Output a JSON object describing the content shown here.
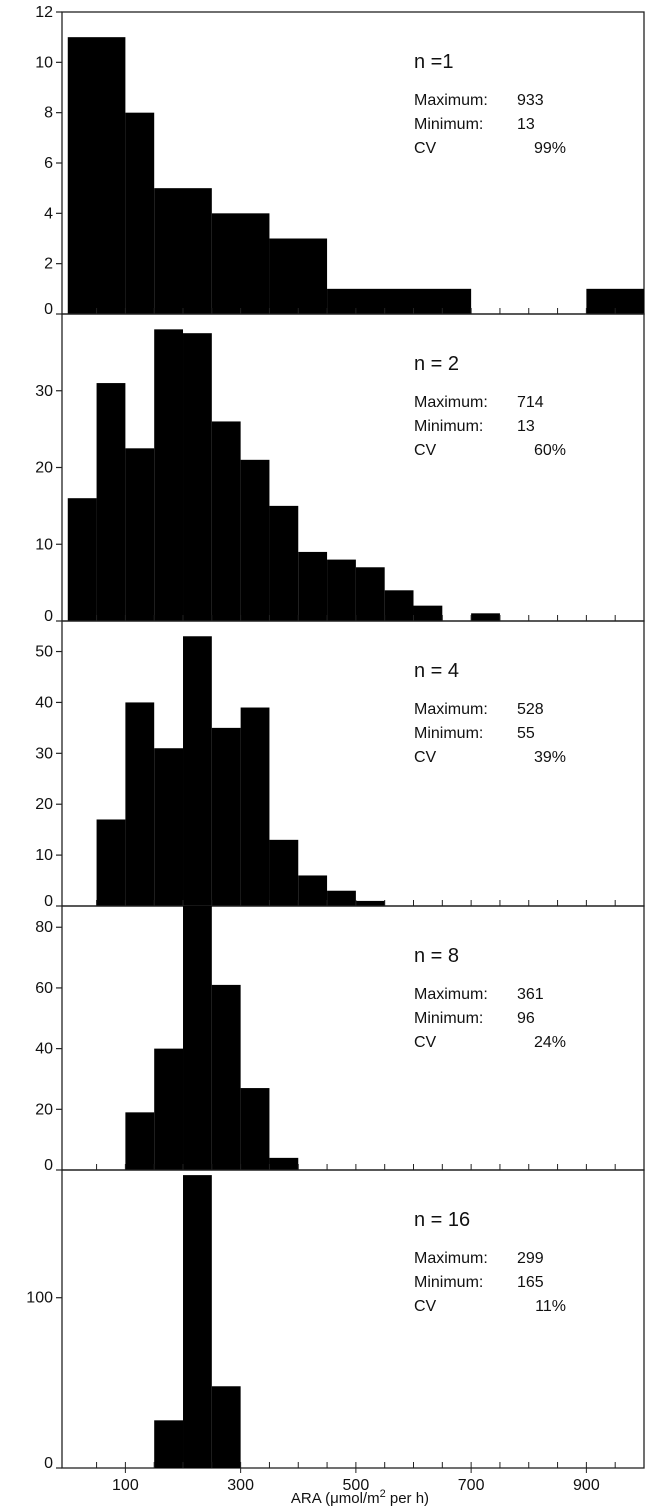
{
  "colors": {
    "bars": "#000000",
    "frame": "#222222",
    "background": "#ffffff"
  },
  "chart_data": [
    {
      "type": "bar",
      "annotation": {
        "n": "n =1",
        "max_label": "Maximum:",
        "max_value": "933",
        "min_label": "Minimum:",
        "min_value": "13",
        "cv_label": "CV",
        "cv_value": "99%"
      },
      "bin_width": 50,
      "bins": [
        {
          "x0": 0,
          "x1": 100,
          "value": 11
        },
        {
          "x0": 100,
          "x1": 150,
          "value": 8
        },
        {
          "x0": 150,
          "x1": 250,
          "value": 5
        },
        {
          "x0": 250,
          "x1": 350,
          "value": 4
        },
        {
          "x0": 350,
          "x1": 450,
          "value": 3
        },
        {
          "x0": 450,
          "x1": 700,
          "value": 1
        },
        {
          "x0": 900,
          "x1": 1000,
          "value": 1
        }
      ],
      "ylim": [
        0,
        12
      ],
      "yticks": [
        0,
        2,
        4,
        6,
        8,
        10,
        12
      ]
    },
    {
      "type": "bar",
      "annotation": {
        "n": "n = 2",
        "max_label": "Maximum:",
        "max_value": "714",
        "min_label": "Minimum:",
        "min_value": "13",
        "cv_label": "CV",
        "cv_value": "60%"
      },
      "bin_width": 50,
      "bins": [
        {
          "x0": 0,
          "x1": 50,
          "value": 16
        },
        {
          "x0": 50,
          "x1": 100,
          "value": 31
        },
        {
          "x0": 100,
          "x1": 150,
          "value": 22.5
        },
        {
          "x0": 150,
          "x1": 200,
          "value": 38
        },
        {
          "x0": 200,
          "x1": 250,
          "value": 37.5
        },
        {
          "x0": 250,
          "x1": 300,
          "value": 26
        },
        {
          "x0": 300,
          "x1": 350,
          "value": 21
        },
        {
          "x0": 350,
          "x1": 400,
          "value": 15
        },
        {
          "x0": 400,
          "x1": 450,
          "value": 9
        },
        {
          "x0": 450,
          "x1": 500,
          "value": 8
        },
        {
          "x0": 500,
          "x1": 550,
          "value": 7
        },
        {
          "x0": 550,
          "x1": 600,
          "value": 4
        },
        {
          "x0": 600,
          "x1": 650,
          "value": 2
        },
        {
          "x0": 700,
          "x1": 750,
          "value": 1
        }
      ],
      "ylim": [
        0,
        40
      ],
      "yticks": [
        0,
        10,
        20,
        30
      ]
    },
    {
      "type": "bar",
      "annotation": {
        "n": "n = 4",
        "max_label": "Maximum:",
        "max_value": "528",
        "min_label": "Minimum:",
        "min_value": "55",
        "cv_label": "CV",
        "cv_value": "39%"
      },
      "bin_width": 50,
      "bins": [
        {
          "x0": 50,
          "x1": 100,
          "value": 17
        },
        {
          "x0": 100,
          "x1": 150,
          "value": 40
        },
        {
          "x0": 150,
          "x1": 200,
          "value": 31
        },
        {
          "x0": 200,
          "x1": 250,
          "value": 53
        },
        {
          "x0": 250,
          "x1": 300,
          "value": 35
        },
        {
          "x0": 300,
          "x1": 350,
          "value": 39
        },
        {
          "x0": 350,
          "x1": 400,
          "value": 13
        },
        {
          "x0": 400,
          "x1": 450,
          "value": 6
        },
        {
          "x0": 450,
          "x1": 500,
          "value": 3
        },
        {
          "x0": 500,
          "x1": 550,
          "value": 1
        }
      ],
      "ylim": [
        0,
        56
      ],
      "yticks": [
        0,
        10,
        20,
        30,
        40,
        50
      ]
    },
    {
      "type": "bar",
      "annotation": {
        "n": "n = 8",
        "max_label": "Maximum:",
        "max_value": "361",
        "min_label": "Minimum:",
        "min_value": "96",
        "cv_label": "CV",
        "cv_value": "24%"
      },
      "bin_width": 50,
      "bins": [
        {
          "x0": 100,
          "x1": 150,
          "value": 19
        },
        {
          "x0": 150,
          "x1": 200,
          "value": 40
        },
        {
          "x0": 200,
          "x1": 250,
          "value": 87
        },
        {
          "x0": 250,
          "x1": 300,
          "value": 61
        },
        {
          "x0": 300,
          "x1": 350,
          "value": 27
        },
        {
          "x0": 350,
          "x1": 400,
          "value": 4
        }
      ],
      "ylim": [
        0,
        87
      ],
      "yticks": [
        0,
        20,
        40,
        60,
        80
      ]
    },
    {
      "type": "bar",
      "annotation": {
        "n": "n = 16",
        "max_label": "Maximum:",
        "max_value": "299",
        "min_label": "Minimum:",
        "min_value": "165",
        "cv_label": "CV",
        "cv_value": "11%"
      },
      "bin_width": 50,
      "bins": [
        {
          "x0": 150,
          "x1": 200,
          "value": 28
        },
        {
          "x0": 200,
          "x1": 250,
          "value": 172
        },
        {
          "x0": 250,
          "x1": 300,
          "value": 48
        }
      ],
      "ylim": [
        0,
        175
      ],
      "yticks": [
        0,
        100
      ]
    }
  ],
  "x_axis": {
    "xlim": [
      -10,
      1000
    ],
    "tick_labels": [
      100,
      300,
      500,
      700,
      900
    ],
    "minor_step": 50,
    "label_main": "ARA (μmol/m",
    "label_sup": "2",
    "label_rest": " per h)"
  }
}
